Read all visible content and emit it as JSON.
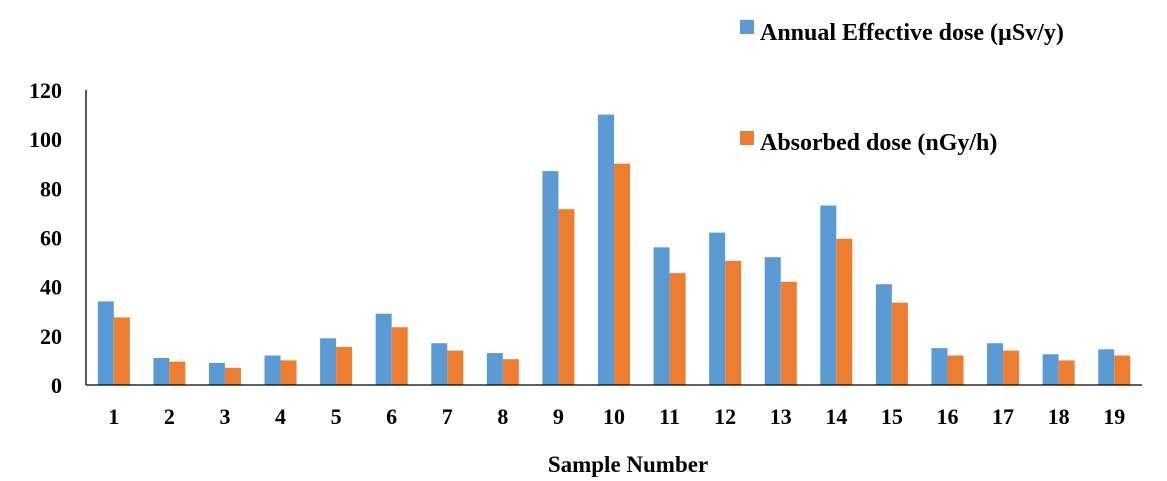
{
  "chart_data": {
    "type": "bar",
    "title": "",
    "xlabel": "Sample Number",
    "ylabel": "",
    "ylim": [
      0,
      120
    ],
    "yticks": [
      0,
      20,
      40,
      60,
      80,
      100,
      120
    ],
    "grid": false,
    "legend": "top-right",
    "categories": [
      "1",
      "2",
      "3",
      "4",
      "5",
      "6",
      "7",
      "8",
      "9",
      "10",
      "11",
      "12",
      "13",
      "14",
      "15",
      "16",
      "17",
      "18",
      "19"
    ],
    "series": [
      {
        "name": "Annual Effective dose (µSv/y)",
        "color": "#5b9bd5",
        "values": [
          34,
          11,
          9,
          12,
          19,
          29,
          17,
          13,
          87,
          110,
          56,
          62,
          52,
          73,
          41,
          15,
          17,
          12.5,
          14.5
        ]
      },
      {
        "name": "Absorbed dose (nGy/h)",
        "color": "#ed7d31",
        "values": [
          27.5,
          9.5,
          7,
          10,
          15.5,
          23.5,
          14,
          10.5,
          71.5,
          90,
          45.5,
          50.5,
          42,
          59.5,
          33.5,
          12,
          14,
          10,
          12
        ]
      }
    ]
  }
}
